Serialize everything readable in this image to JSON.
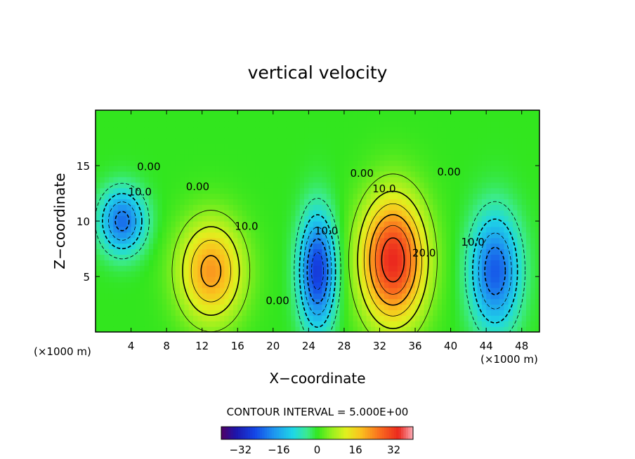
{
  "chart_data": {
    "type": "heatmap",
    "title": "vertical velocity",
    "xlabel": "X−coordinate",
    "ylabel": "Z−coordinate",
    "x_unit_left": "(×1000 m)",
    "x_unit_right": "(×1000 m)",
    "xlim": [
      0,
      50
    ],
    "ylim": [
      0,
      20
    ],
    "x_ticks": [
      4,
      8,
      12,
      16,
      20,
      24,
      28,
      32,
      36,
      40,
      44,
      48
    ],
    "y_ticks": [
      5,
      10,
      15
    ],
    "contour_interval_text": "CONTOUR INTERVAL = 5.000E+00",
    "colorbar": {
      "range": [
        -40,
        40
      ],
      "ticks": [
        -32,
        -16,
        0,
        16,
        32
      ],
      "tick_labels": [
        "−32",
        "−16",
        "0",
        "16",
        "32"
      ]
    },
    "contour_labels": [
      {
        "text": "0.00",
        "x": 6.0,
        "y": 14.6
      },
      {
        "text": "10.0",
        "x": 5.0,
        "y": 12.3
      },
      {
        "text": "0.00",
        "x": 11.5,
        "y": 12.8
      },
      {
        "text": "10.0",
        "x": 17.0,
        "y": 9.2
      },
      {
        "text": "0.00",
        "x": 20.5,
        "y": 2.5
      },
      {
        "text": "10.0",
        "x": 26.0,
        "y": 8.8
      },
      {
        "text": "0.00",
        "x": 30.0,
        "y": 14.0
      },
      {
        "text": "10.0",
        "x": 32.5,
        "y": 12.6
      },
      {
        "text": "20.0",
        "x": 37.0,
        "y": 6.8
      },
      {
        "text": "0.00",
        "x": 39.8,
        "y": 14.1
      },
      {
        "text": "10.0",
        "x": 42.5,
        "y": 7.8
      }
    ],
    "features": [
      {
        "sign": "negative",
        "x": 3.0,
        "y": 10.0,
        "sx": 2.5,
        "sy": 2.8,
        "value": -22
      },
      {
        "sign": "positive",
        "x": 13.0,
        "y": 5.5,
        "sx": 3.6,
        "sy": 4.5,
        "value": 22
      },
      {
        "sign": "negative",
        "x": 25.0,
        "y": 5.5,
        "sx": 2.0,
        "sy": 5.0,
        "value": -28
      },
      {
        "sign": "positive",
        "x": 33.5,
        "y": 6.5,
        "sx": 3.6,
        "sy": 5.6,
        "value": 34
      },
      {
        "sign": "negative",
        "x": 45.0,
        "y": 5.5,
        "sx": 2.7,
        "sy": 5.0,
        "value": -24
      }
    ]
  }
}
